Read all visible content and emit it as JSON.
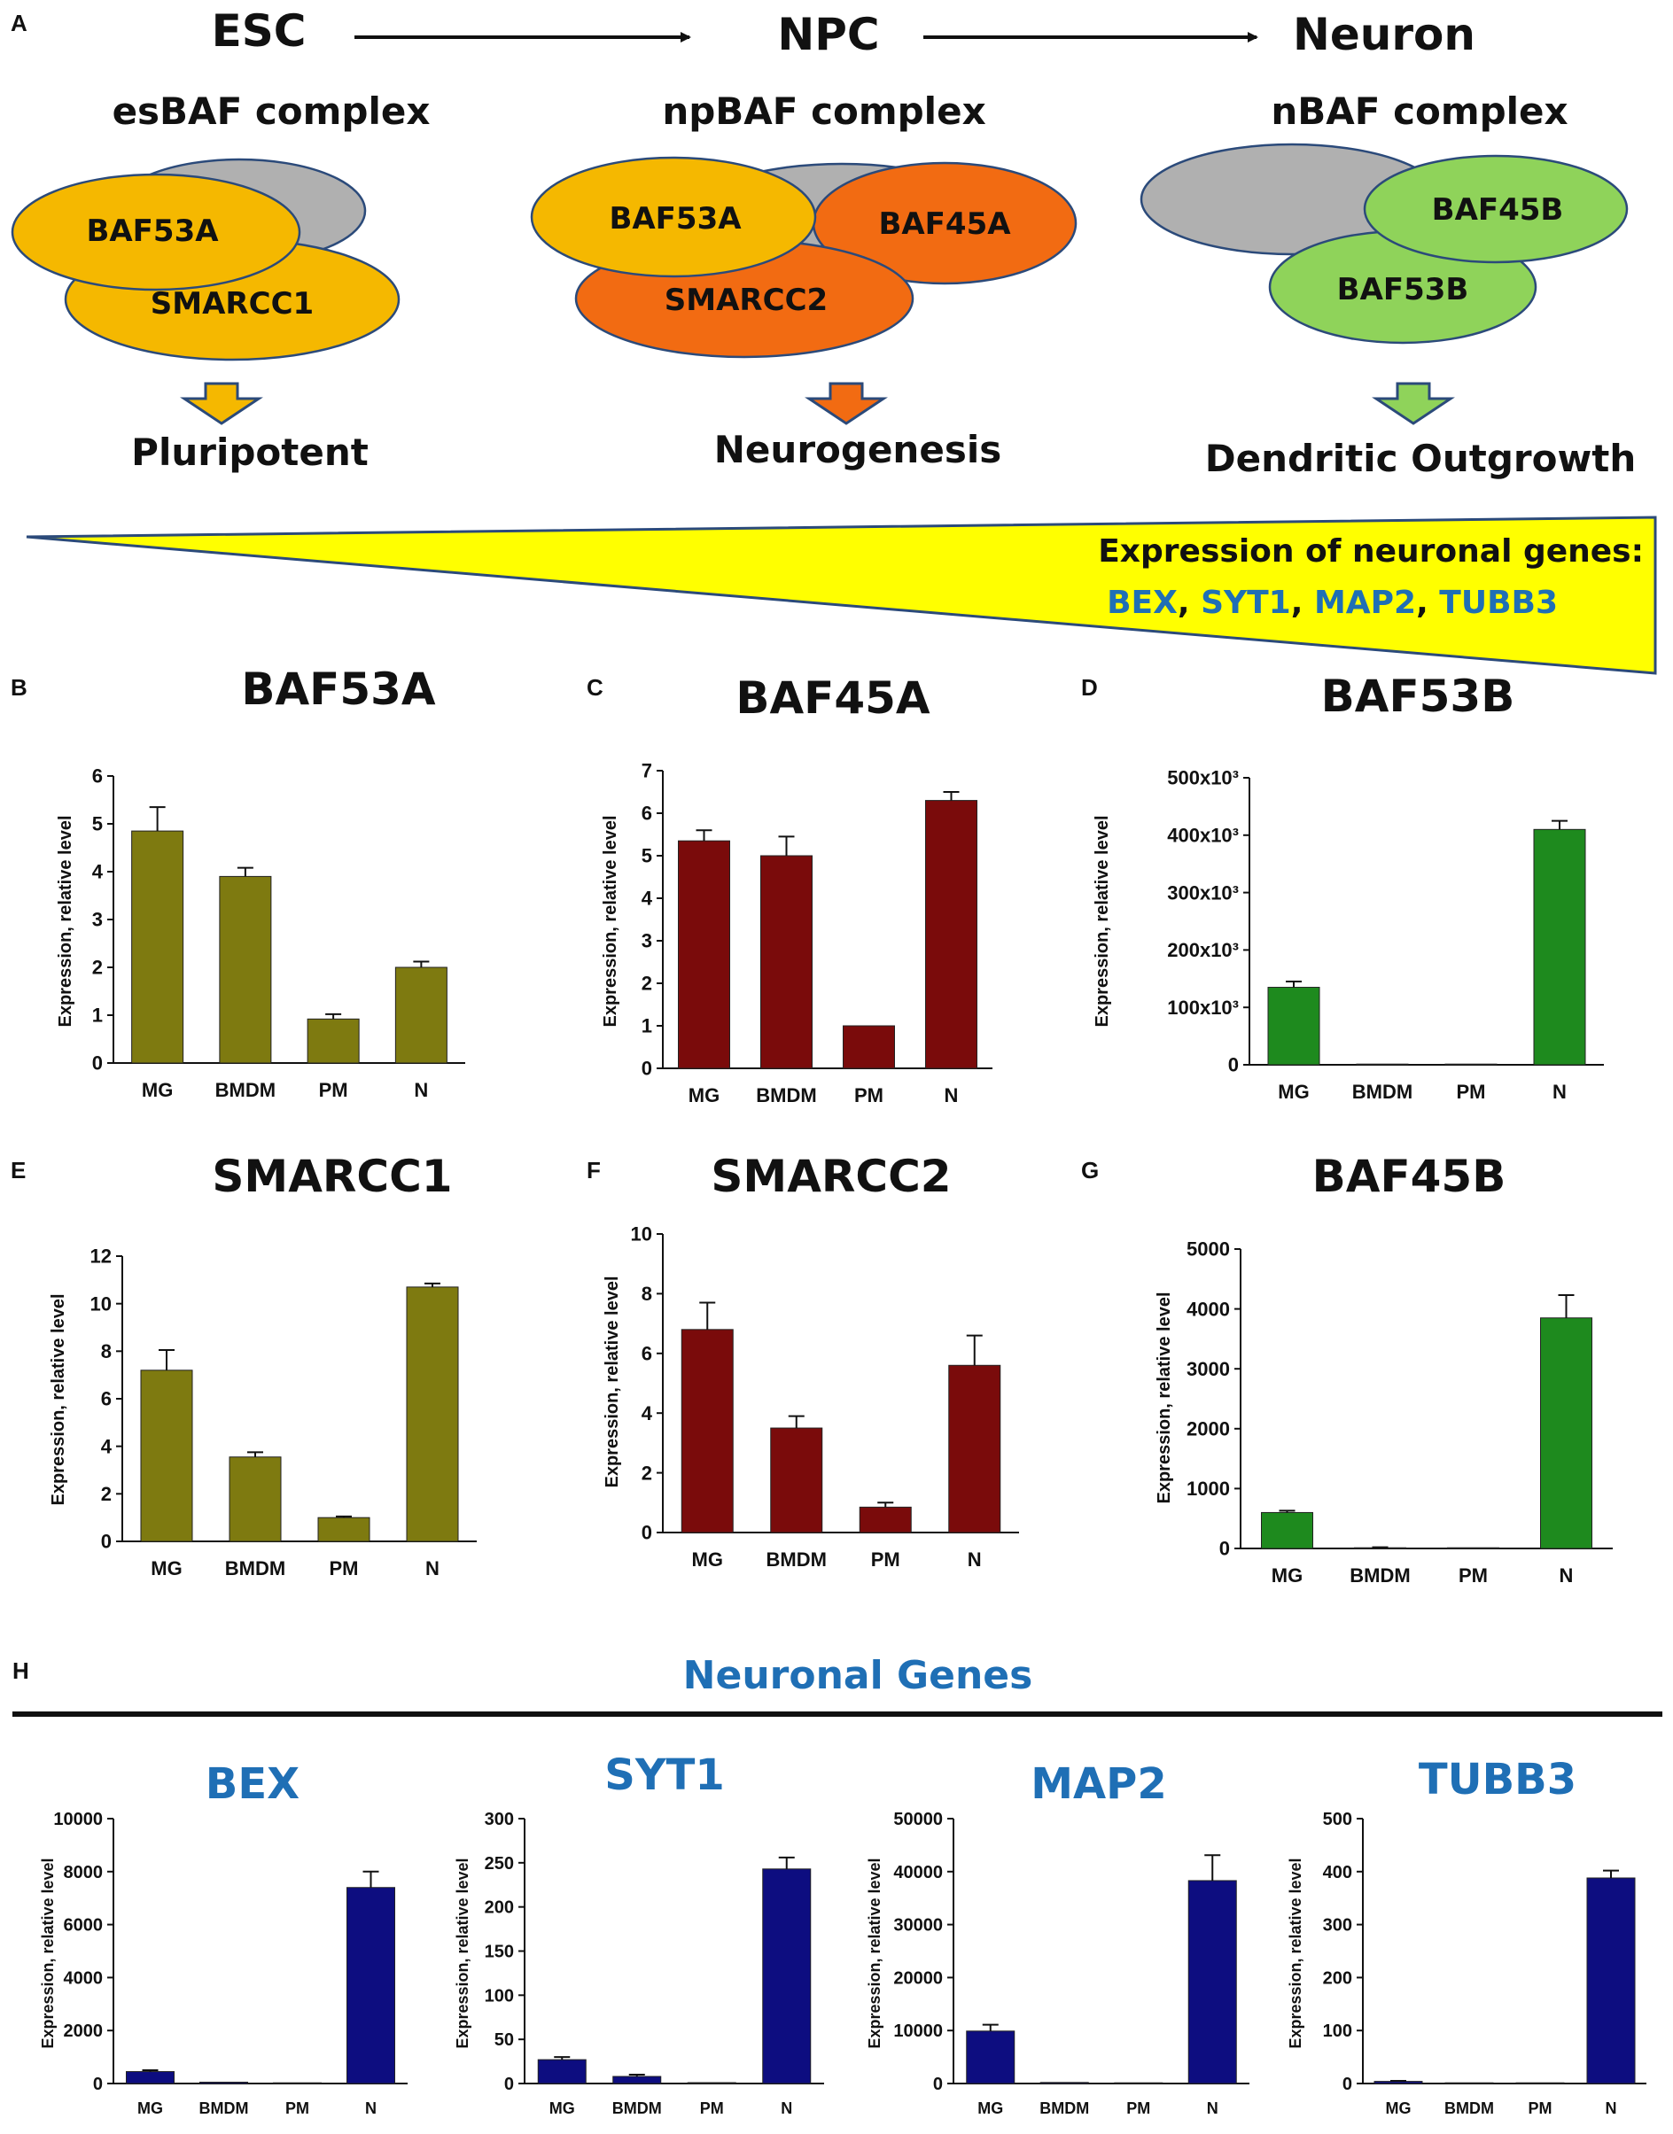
{
  "panel_a": {
    "label": "A",
    "stages": [
      "ESC",
      "NPC",
      "Neuron"
    ],
    "complexes": [
      {
        "title": "esBAF complex",
        "subunits": [
          "BAF53A",
          "SMARCC1"
        ],
        "outcome": "Pluripotent",
        "color": "#f5b800"
      },
      {
        "title": "npBAF complex",
        "subunits": [
          "BAF53A",
          "BAF45A",
          "SMARCC2"
        ],
        "outcome": "Neurogenesis",
        "color": "#f26b12"
      },
      {
        "title": "nBAF complex",
        "subunits": [
          "BAF45B",
          "BAF53B"
        ],
        "outcome": "Dendritic Outgrowth",
        "color": "#8fd35a"
      }
    ],
    "gradient_text": "Expression of neuronal genes:",
    "genes": [
      "BEX",
      "SYT1",
      "MAP2",
      "TUBB3"
    ],
    "gene_sep": ", "
  },
  "panel_h": {
    "label": "H",
    "title": "Neuronal Genes"
  },
  "colors": {
    "olive": "#7e7a10",
    "maroon": "#7a0b0b",
    "green": "#1e8a1e",
    "navy": "#0d0d80",
    "blue_text": "#1f6fb5",
    "yellow": "#ffff00"
  },
  "chart_data": [
    {
      "label": "B",
      "type": "bar",
      "title": "BAF53A",
      "ylabel": "Expression, relative level",
      "categories": [
        "MG",
        "BMDM",
        "PM",
        "N"
      ],
      "values": [
        4.85,
        3.9,
        0.92,
        2.0
      ],
      "errors": [
        0.5,
        0.18,
        0.1,
        0.12
      ],
      "ylim": [
        0,
        6
      ],
      "yticks": [
        "0",
        "1",
        "2",
        "3",
        "4",
        "5",
        "6"
      ],
      "color": "olive"
    },
    {
      "label": "C",
      "type": "bar",
      "title": "BAF45A",
      "ylabel": "Expression, relative level",
      "categories": [
        "MG",
        "BMDM",
        "PM",
        "N"
      ],
      "values": [
        5.35,
        5.0,
        1.0,
        6.3
      ],
      "errors": [
        0.25,
        0.45,
        0.0,
        0.2
      ],
      "ylim": [
        0,
        7
      ],
      "yticks": [
        "0",
        "1",
        "2",
        "3",
        "4",
        "5",
        "6",
        "7"
      ],
      "color": "maroon"
    },
    {
      "label": "D",
      "type": "bar",
      "title": "BAF53B",
      "ylabel": "Expression, relative level",
      "categories": [
        "MG",
        "BMDM",
        "PM",
        "N"
      ],
      "values": [
        135000,
        500,
        500,
        410000
      ],
      "errors": [
        10000,
        0,
        0,
        15000
      ],
      "ylim": [
        0,
        500000
      ],
      "yticks": [
        "0",
        "100x10³",
        "200x10³",
        "300x10³",
        "400x10³",
        "500x10³"
      ],
      "color": "green"
    },
    {
      "label": "E",
      "type": "bar",
      "title": "SMARCC1",
      "ylabel": "Expression, relative level",
      "categories": [
        "MG",
        "BMDM",
        "PM",
        "N"
      ],
      "values": [
        7.2,
        3.55,
        1.0,
        10.7
      ],
      "errors": [
        0.85,
        0.2,
        0.05,
        0.15
      ],
      "ylim": [
        0,
        12
      ],
      "yticks": [
        "0",
        "2",
        "4",
        "6",
        "8",
        "10",
        "12"
      ],
      "color": "olive"
    },
    {
      "label": "F",
      "type": "bar",
      "title": "SMARCC2",
      "ylabel": "Expression, relative level",
      "categories": [
        "MG",
        "BMDM",
        "PM",
        "N"
      ],
      "values": [
        6.8,
        3.5,
        0.85,
        5.6
      ],
      "errors": [
        0.9,
        0.4,
        0.15,
        1.0
      ],
      "ylim": [
        0,
        10
      ],
      "yticks": [
        "0",
        "2",
        "4",
        "6",
        "8",
        "10"
      ],
      "color": "maroon"
    },
    {
      "label": "G",
      "type": "bar",
      "title": "BAF45B",
      "ylabel": "Expression, relative level",
      "categories": [
        "MG",
        "BMDM",
        "PM",
        "N"
      ],
      "values": [
        600,
        10,
        5,
        3850
      ],
      "errors": [
        30,
        10,
        0,
        380
      ],
      "ylim": [
        0,
        5000
      ],
      "yticks": [
        "0",
        "1000",
        "2000",
        "3000",
        "4000",
        "5000"
      ],
      "color": "green"
    },
    {
      "label": "",
      "type": "bar",
      "title": "BEX",
      "ylabel": "Expression, relative level",
      "categories": [
        "MG",
        "BMDM",
        "PM",
        "N"
      ],
      "values": [
        450,
        50,
        10,
        7400
      ],
      "errors": [
        50,
        0,
        0,
        600
      ],
      "ylim": [
        0,
        10000
      ],
      "yticks": [
        "0",
        "2000",
        "4000",
        "6000",
        "8000",
        "10000"
      ],
      "color": "navy"
    },
    {
      "label": "",
      "type": "bar",
      "title": "SYT1",
      "ylabel": "Expression, relative level",
      "categories": [
        "MG",
        "BMDM",
        "PM",
        "N"
      ],
      "values": [
        27,
        8,
        1,
        243
      ],
      "errors": [
        3,
        2,
        0,
        13
      ],
      "ylim": [
        0,
        300
      ],
      "yticks": [
        "0",
        "50",
        "100",
        "150",
        "200",
        "250",
        "300"
      ],
      "color": "navy"
    },
    {
      "label": "",
      "type": "bar",
      "title": "MAP2",
      "ylabel": "Expression, relative level",
      "categories": [
        "MG",
        "BMDM",
        "PM",
        "N"
      ],
      "values": [
        9900,
        200,
        50,
        38300
      ],
      "errors": [
        1200,
        0,
        0,
        4800
      ],
      "ylim": [
        0,
        50000
      ],
      "yticks": [
        "0",
        "10000",
        "20000",
        "30000",
        "40000",
        "50000"
      ],
      "color": "navy"
    },
    {
      "label": "",
      "type": "bar",
      "title": "TUBB3",
      "ylabel": "Expression, relative level",
      "categories": [
        "MG",
        "BMDM",
        "PM",
        "N"
      ],
      "values": [
        4,
        1,
        1,
        388
      ],
      "errors": [
        1,
        0,
        0,
        14
      ],
      "ylim": [
        0,
        500
      ],
      "yticks": [
        "0",
        "100",
        "200",
        "300",
        "400",
        "500"
      ],
      "color": "navy"
    }
  ]
}
